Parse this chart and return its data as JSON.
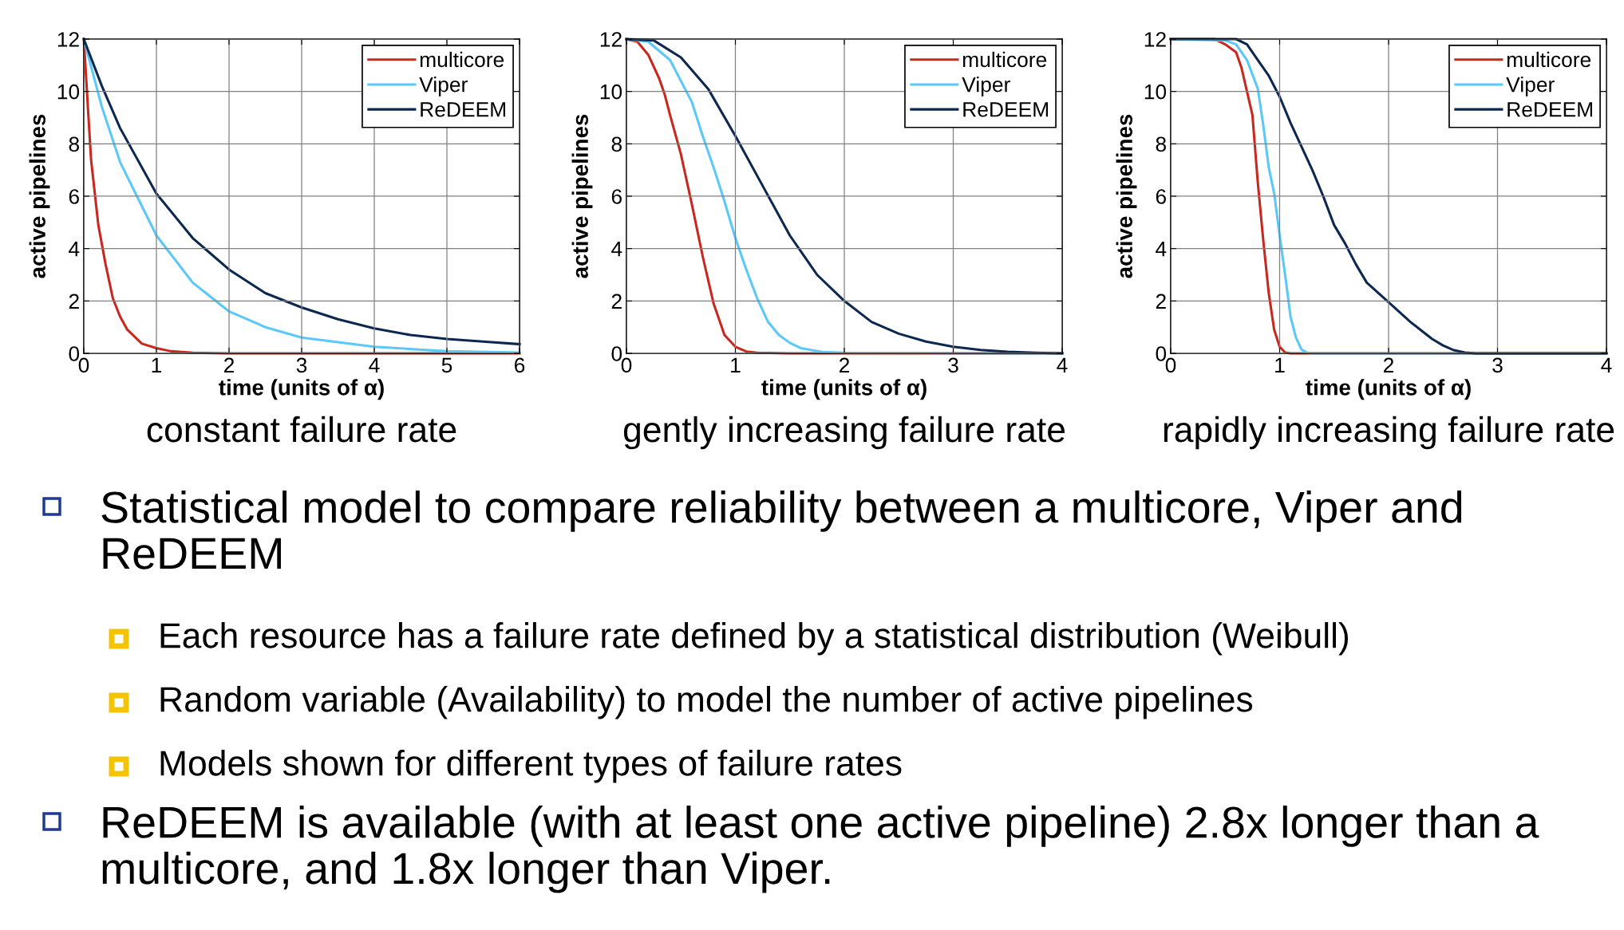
{
  "chart_data": [
    {
      "type": "line",
      "title": "constant failure rate",
      "xlabel": "time (units of α)",
      "ylabel": "active pipelines",
      "xlim": [
        0,
        6
      ],
      "xticks": [
        0,
        1,
        2,
        3,
        4,
        5,
        6
      ],
      "ylim": [
        0,
        12
      ],
      "yticks": [
        0,
        2,
        4,
        6,
        8,
        10,
        12
      ],
      "grid": true,
      "legend": "top right",
      "line_style": "solid",
      "series": [
        {
          "name": "multicore",
          "color": "#c8281e",
          "x": [
            0,
            0.1,
            0.2,
            0.3,
            0.4,
            0.5,
            0.6,
            0.8,
            1.0,
            1.2,
            1.5,
            2,
            3,
            4,
            5,
            6
          ],
          "values": [
            12,
            7.4,
            4.9,
            3.4,
            2.1,
            1.4,
            0.9,
            0.37,
            0.2,
            0.08,
            0.02,
            0,
            0,
            0,
            0,
            0
          ]
        },
        {
          "name": "Viper",
          "color": "#5ac8f8",
          "x": [
            0,
            0.25,
            0.5,
            1,
            1.5,
            2,
            2.5,
            3,
            4,
            5,
            6
          ],
          "values": [
            12,
            9.4,
            7.3,
            4.5,
            2.7,
            1.6,
            1.0,
            0.6,
            0.25,
            0.08,
            0.03
          ]
        },
        {
          "name": "ReDEEM",
          "color": "#0c2850",
          "x": [
            0,
            0.25,
            0.5,
            1,
            1.5,
            2,
            2.5,
            3,
            3.5,
            4,
            4.5,
            5,
            5.5,
            6
          ],
          "values": [
            12,
            10.2,
            8.6,
            6.1,
            4.4,
            3.2,
            2.3,
            1.75,
            1.3,
            0.95,
            0.7,
            0.55,
            0.45,
            0.35
          ]
        }
      ]
    },
    {
      "type": "line",
      "title": "gently increasing failure rate",
      "xlabel": "time (units of α)",
      "ylabel": "active pipelines",
      "xlim": [
        0,
        4
      ],
      "xticks": [
        0,
        1,
        2,
        3,
        4
      ],
      "ylim": [
        0,
        12
      ],
      "yticks": [
        0,
        2,
        4,
        6,
        8,
        10,
        12
      ],
      "grid": true,
      "legend": "top right",
      "line_style": "solid",
      "series": [
        {
          "name": "multicore",
          "color": "#c8281e",
          "x": [
            0,
            0.1,
            0.2,
            0.3,
            0.35,
            0.4,
            0.5,
            0.6,
            0.7,
            0.8,
            0.9,
            1.0,
            1.1,
            1.2,
            1.5,
            4
          ],
          "values": [
            12,
            11.9,
            11.4,
            10.5,
            9.9,
            9.1,
            7.6,
            5.7,
            3.7,
            1.9,
            0.7,
            0.25,
            0.07,
            0.02,
            0,
            0
          ]
        },
        {
          "name": "Viper",
          "color": "#5ac8f8",
          "x": [
            0,
            0.2,
            0.4,
            0.55,
            0.6,
            0.7,
            0.8,
            0.9,
            1.0,
            1.1,
            1.2,
            1.3,
            1.4,
            1.5,
            1.6,
            1.8,
            2,
            4
          ],
          "values": [
            12,
            11.9,
            11.2,
            10.0,
            9.6,
            8.3,
            7.1,
            5.8,
            4.4,
            3.2,
            2.1,
            1.2,
            0.7,
            0.4,
            0.2,
            0.05,
            0.02,
            0
          ]
        },
        {
          "name": "ReDEEM",
          "color": "#0c2850",
          "x": [
            0,
            0.25,
            0.5,
            0.75,
            1.0,
            1.25,
            1.5,
            1.75,
            2.0,
            2.25,
            2.5,
            2.75,
            3.0,
            3.25,
            3.5,
            3.75,
            4
          ],
          "values": [
            12,
            11.95,
            11.3,
            10.1,
            8.3,
            6.4,
            4.5,
            3.0,
            2.0,
            1.2,
            0.75,
            0.45,
            0.25,
            0.13,
            0.06,
            0.02,
            0
          ]
        }
      ]
    },
    {
      "type": "line",
      "title": "rapidly increasing failure rate",
      "xlabel": "time (units of α)",
      "ylabel": "active pipelines",
      "xlim": [
        0,
        4
      ],
      "xticks": [
        0,
        1,
        2,
        3,
        4
      ],
      "ylim": [
        0,
        12
      ],
      "yticks": [
        0,
        2,
        4,
        6,
        8,
        10,
        12
      ],
      "grid": true,
      "legend": "top right",
      "line_style": "solid",
      "series": [
        {
          "name": "multicore",
          "color": "#c8281e",
          "x": [
            0,
            0.4,
            0.5,
            0.6,
            0.65,
            0.7,
            0.75,
            0.8,
            0.85,
            0.9,
            0.95,
            1.0,
            1.05,
            1.1,
            4
          ],
          "values": [
            12,
            12,
            11.8,
            11.5,
            10.9,
            10.0,
            9.1,
            6.5,
            4.3,
            2.3,
            0.9,
            0.25,
            0.03,
            0,
            0
          ]
        },
        {
          "name": "Viper",
          "color": "#5ac8f8",
          "x": [
            0,
            0.5,
            0.6,
            0.7,
            0.8,
            0.85,
            0.9,
            0.95,
            1.0,
            1.05,
            1.1,
            1.15,
            1.2,
            1.25,
            1.3,
            4
          ],
          "values": [
            12,
            11.95,
            11.8,
            11.2,
            10.1,
            8.7,
            7.1,
            6.1,
            4.5,
            3.0,
            1.4,
            0.6,
            0.15,
            0.03,
            0,
            0
          ]
        },
        {
          "name": "ReDEEM",
          "color": "#0c2850",
          "x": [
            0,
            0.6,
            0.7,
            0.8,
            0.9,
            1.0,
            1.1,
            1.2,
            1.3,
            1.4,
            1.5,
            1.6,
            1.7,
            1.8,
            2.0,
            2.2,
            2.4,
            2.5,
            2.6,
            2.7,
            2.8,
            4
          ],
          "values": [
            12,
            12,
            11.8,
            11.2,
            10.6,
            9.8,
            8.8,
            7.9,
            7.0,
            6.0,
            4.9,
            4.2,
            3.4,
            2.7,
            1.95,
            1.2,
            0.55,
            0.3,
            0.12,
            0.03,
            0,
            0
          ]
        }
      ]
    },
    {
      "type": "other",
      "annotations": [
        "Statistical model to compare reliability between a multicore, Viper and ReDEEM",
        "Each resource has a failure rate defined by a statistical distribution (Weibull)",
        "Random variable (Availability) to model the number of active pipelines",
        "Models shown for different types of failure rates",
        "ReDEEM is available (with at least one active pipeline) 2.8x longer than a multicore, and 1.8x longer than Viper."
      ]
    }
  ]
}
